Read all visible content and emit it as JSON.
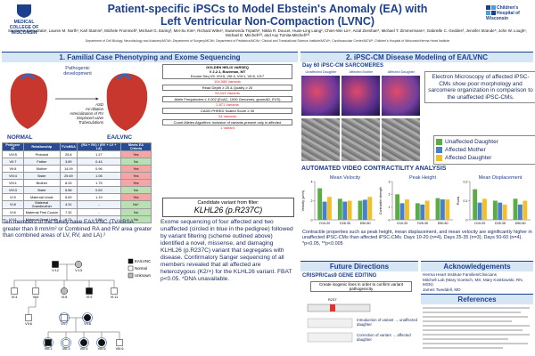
{
  "header": {
    "logo_left": "MEDICAL COLLEGE OF WISCONSIN",
    "title_line1": "Patient-specific iPSCs to Model Ebstein's Anomaly (EA) with",
    "title_line2": "Left Ventricular Non-Compaction (LVNC)",
    "logo_right": "Children's Hospital of Wisconsin",
    "authors": "Sai-Suma Samudrala¹, Lauren M. North¹, Karl Stamm², Michele Frommelt³, Michael G. Earing³, Mei-Su Kim¹, Richard Wiles¹, Swamendu Tripathi¹, Nikita R. Doucet, Huan-Ling Liang², Chien-Wei Lin⁴, Aizal Zeeshan⁵, Michael T. Zimmermann⁴, Gabrielle C. Geddes³, Jennifer Strande⁵, John W. Lough¹, Michael E. Mitchell¹²³, and Aoy Tomita-Mitchell¹²³",
    "affiliations": "Department of Cell Biology, Neurobiology and Anatomy/MCW¹; Department of Surgery/MCW²; Department of Pediatrics/MCW³; Clinical and Translational Science Institute/MCW⁴; Cardiovascular Center/MCW⁵; Children's Hospital of Wisconsin/Herma Heart Institute"
  },
  "section1": {
    "heading": "1. Familial Case Phenotyping and Exome Sequencing",
    "pathogenic": "Pathogenic development",
    "features": [
      "ASD",
      "AV dilation",
      "Arterialization of RV",
      "Displaced valve",
      "Trabeculations"
    ],
    "normal_label": "NORMAL",
    "ea_label": "EA/LVNC",
    "table": {
      "headers": [
        "Pedigree ID",
        "Relationship",
        "TV/cBSA",
        "(RA + RV) / (RV + LV + LA)",
        "Meets EA Criteria"
      ],
      "rows": [
        [
          "VIII:5",
          "Proband",
          "25.8",
          "1.27",
          "Yes"
        ],
        [
          "VII:7",
          "Father",
          "3.89",
          "0.44",
          "No"
        ],
        [
          "VII:8",
          "Mother",
          "14.09",
          "0.96",
          "Yes"
        ],
        [
          "VIII:4",
          "Sister",
          "29.69",
          "1.06",
          "Yes"
        ],
        [
          "VIII:1",
          "Brother",
          "8.25",
          "1.75",
          "Yes"
        ],
        [
          "VIII:3",
          "Sister",
          "6.56",
          "0.63",
          "No"
        ],
        [
          "VI:9",
          "Maternal Uncle",
          "6.69",
          "1.19",
          "Yes"
        ],
        [
          "VI:8",
          "Maternal Grandmother",
          "4.31",
          "-",
          "No*"
        ],
        [
          "VI:6",
          "Maternal First Cousin",
          "7.32",
          "-",
          "No"
        ],
        [
          "VI:11",
          "Maternal Great Uncle",
          "6.21",
          "0.54",
          "No"
        ]
      ]
    },
    "family_text": "Ten members of the family have EA/LVNC (TV/cBSA greater than 8 mm/m² or Combined RA and RV area greater than combined areas of LV, RV, and LA).²",
    "pedigree": {
      "legend": [
        "EA/LVNC",
        "Normal",
        "Unknown"
      ],
      "nodes": [
        "V:12",
        "V:13",
        "VI:4",
        "VI:6",
        "VI:8",
        "VI:9",
        "VI:11",
        "VII:6",
        "VII:7",
        "VII:8",
        "VIII:1",
        "VIII:3",
        "VIII:4",
        "VIII:5",
        "VIII:6"
      ]
    },
    "filter": {
      "title": "GOLDEN HELIX VARSEQ",
      "version": "V 2.2.1, Bozeman, MT",
      "input": "Exome Seq V5: VIII:5, VIII:4, VIII:1, VII:8, VII:7",
      "start": "104,988 Variants",
      "steps": [
        {
          "label": "Read Depth ≥ 25 & Quality ≥ 20",
          "result": "94,043 Variants"
        },
        {
          "label": "Allele Frequencies ≤ 0.002 (ExAC, 1000 Genomes, gnomAD, EVS)",
          "result": "2,871 Variants"
        },
        {
          "label": "CADD PHRED Scaled Score ≥ 30",
          "result": "34 Variants"
        },
        {
          "label": "Count Alleles Algorithm: inclusive of variants present only in affected",
          "result": "1 Variant"
        }
      ],
      "candidate_label": "Candidate variant from filter:",
      "candidate": "KLHL26 (p.R237C)"
    },
    "exome_text": "Exome sequencing of four affected and two unaffected (circled in blue in the pedigree) followed by variant filtering (scheme outlined above) identified a novel, missense, and damaging KLHL26 (p.R237C) variant that segregates with disease. Confirmatory Sanger sequencing of all members revealed that all affected are heterozygous (K2/+) for the KLHL26 variant. FBAT p<0.05. *DNA unavailable."
  },
  "section2": {
    "heading": "2. iPSC-CM Disease Modeling of EA/LVNC",
    "sarcomere_title": "Day 60 iPSC-CM SARCOMERES",
    "image_labels": [
      "Unaffected Daughter",
      "Affected Mother",
      "Affected Daughter"
    ],
    "em_text": "Electron Microscopy of affected iPSC-CMs show poor morphology and sarcomere organization in comparison to the unaffected iPSC-CMs.",
    "legend": [
      {
        "name": "Unaffected Daughter",
        "color": "#5aac44"
      },
      {
        "name": "Affected Mother",
        "color": "#4a7fd0"
      },
      {
        "name": "Affected Daughter",
        "color": "#f2c028"
      }
    ],
    "contractility_title": "AUTOMATED VIDEO CONTRACTILITY ANALYSIS",
    "charts": [
      {
        "type": "bar",
        "title": "Mean Velocity",
        "ylabel": "Velocity (µm/s)",
        "categories": [
          "D10-20",
          "D25-35",
          "D50-60"
        ],
        "series": [
          {
            "values": [
              3.3,
              2.2,
              2.0
            ]
          },
          {
            "values": [
              1.9,
              1.9,
              2.1
            ]
          },
          {
            "values": [
              2.4,
              2.0,
              2.4
            ]
          }
        ],
        "ylim": [
          0,
          4
        ],
        "yticks": [
          0,
          2,
          4
        ]
      },
      {
        "type": "bar",
        "title": "Peak Height",
        "ylabel": "Contractile strength",
        "categories": [
          "D10-20",
          "D25-35",
          "D50-60"
        ],
        "series": [
          {
            "values": [
              2.0,
              1.3,
              1.7
            ]
          },
          {
            "values": [
              1.3,
              1.2,
              1.6
            ]
          },
          {
            "values": [
              1.6,
              1.5,
              1.6
            ]
          }
        ],
        "ylim": [
          0,
          3
        ],
        "yticks": [
          0,
          1,
          2,
          3
        ]
      },
      {
        "type": "bar",
        "title": "Mean Displacement",
        "ylabel": "Pixels",
        "categories": [
          "D10-20",
          "D25-35",
          "D50-60"
        ],
        "series": [
          {
            "values": [
              0.16,
              0.1,
              0.11
            ]
          },
          {
            "values": [
              0.09,
              0.09,
              0.08
            ]
          },
          {
            "values": [
              0.11,
              0.08,
              0.1
            ]
          }
        ],
        "ylim": [
          0,
          0.2
        ],
        "yticks": [
          0,
          0.1,
          0.2
        ]
      }
    ],
    "contractility_text": "Contractile properties such as peak height, mean displacement, and mean velocity are significantly higher in unaffected iPSC-CMs than affected iPSC-CMs. Days 10-20 (n=4), Days 25-35 (n=3), Days 50-60 (n=4). *p<0.05, **p<0.005",
    "future": {
      "heading": "Future Directions",
      "subtitle": "CRISPR/Cas9 GENE EDITING",
      "goal": "Create isogenic lines in order to confirm variant pathogenicity",
      "site": "R237",
      "intro": "Introduction of variant → unaffected daughter",
      "correction": "Correction of variant → affected daughter"
    },
    "acknowledgements": {
      "heading": "Acknowledgements",
      "items": [
        "Herma Heart Institute Families/Clinicians",
        "Mitchell Lab (Mary Goetsch, MS; Mary Kostkowski, RN, MSN)",
        "James Tweddell, MD"
      ]
    },
    "references_heading": "References"
  }
}
